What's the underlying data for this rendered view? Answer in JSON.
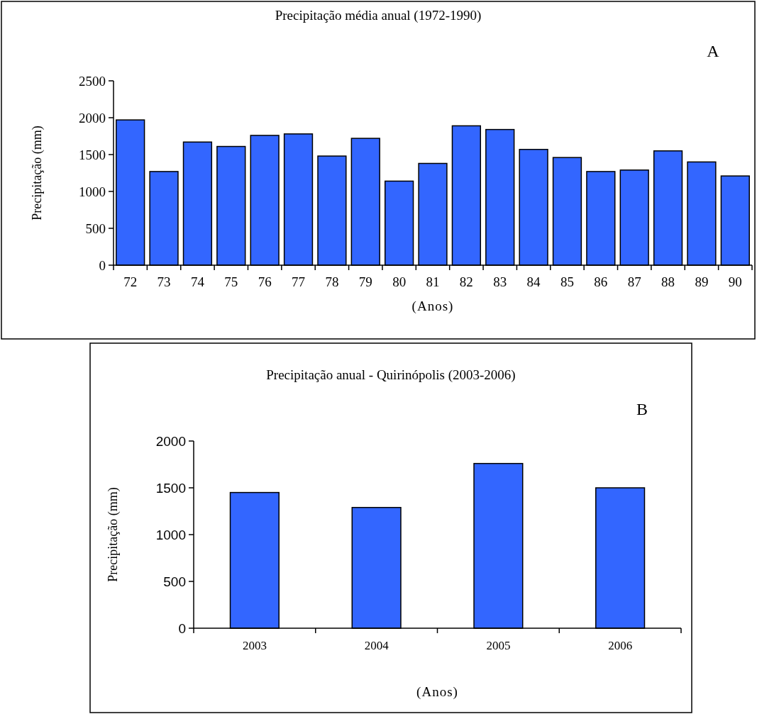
{
  "chart_data": [
    {
      "type": "bar",
      "title": "Precipitação média anual (1972-1990)",
      "xlabel": "(Anos)",
      "ylabel": "Precipitação (mm)",
      "annotations": [
        "A"
      ],
      "categories": [
        "72",
        "73",
        "74",
        "75",
        "76",
        "77",
        "78",
        "79",
        "80",
        "81",
        "82",
        "83",
        "84",
        "85",
        "86",
        "87",
        "88",
        "89",
        "90"
      ],
      "values": [
        1970,
        1270,
        1670,
        1610,
        1760,
        1780,
        1480,
        1720,
        1140,
        1380,
        1890,
        1840,
        1570,
        1460,
        1270,
        1290,
        1550,
        1400,
        1210
      ],
      "color": "#3366ff",
      "ylim": [
        0,
        2500
      ],
      "yticks": [
        0,
        500,
        1000,
        1500,
        2000,
        2500
      ],
      "grid": false
    },
    {
      "type": "bar",
      "title": "Precipitação anual - Quirinópolis (2003-2006)",
      "xlabel": "(Anos)",
      "ylabel": "Precipitação (mm)",
      "annotations": [
        "B"
      ],
      "categories": [
        "2003",
        "2004",
        "2005",
        "2006"
      ],
      "values": [
        1450,
        1290,
        1760,
        1500
      ],
      "color": "#3366ff",
      "ylim": [
        0,
        2000
      ],
      "yticks": [
        0,
        500,
        1000,
        1500,
        2000
      ],
      "grid": false
    }
  ]
}
